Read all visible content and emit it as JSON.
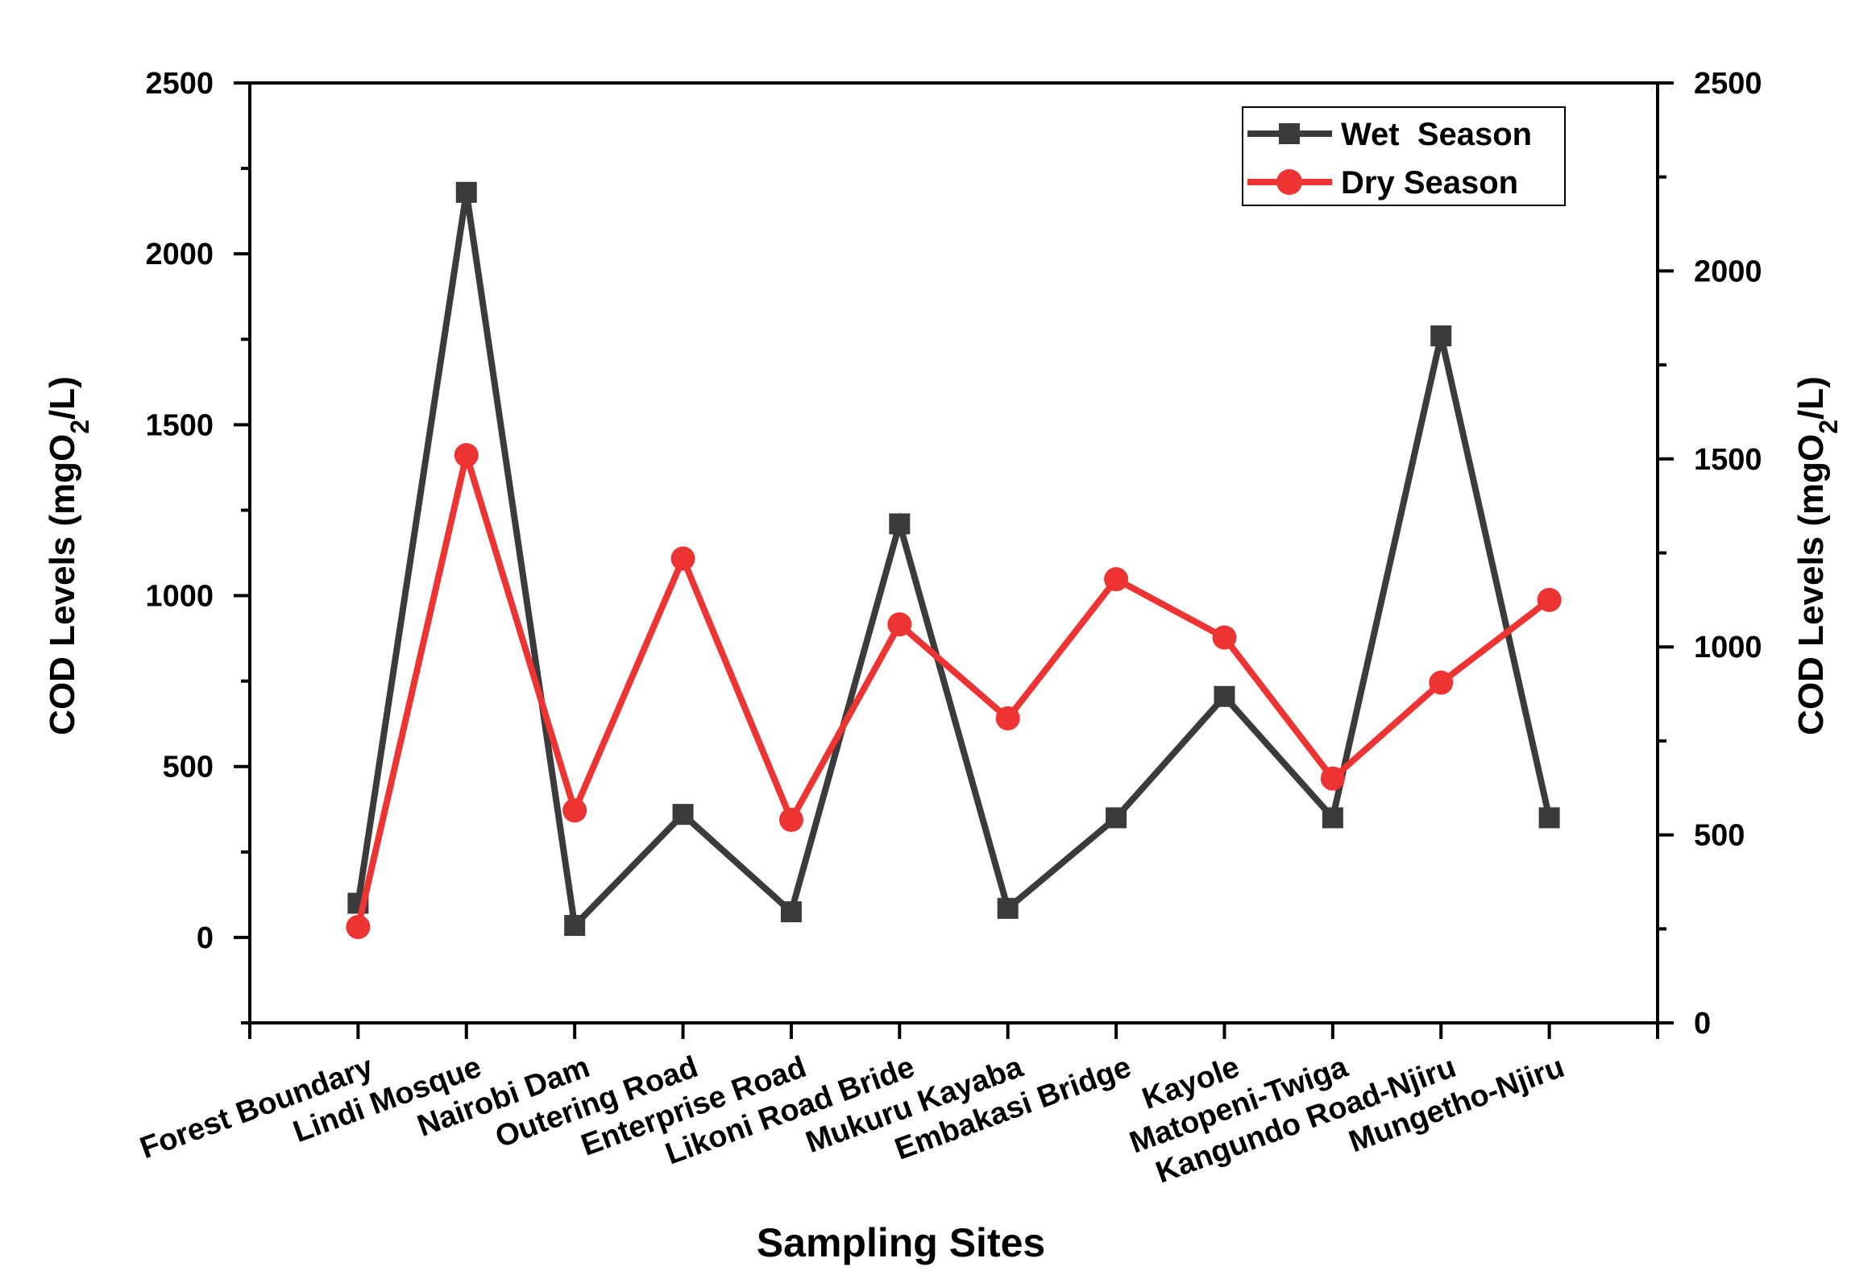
{
  "chart_data": {
    "type": "line",
    "title": "",
    "xlabel": "Sampling Sites",
    "ylabel_left": "COD Levels (mgO2/L)",
    "ylabel_right": "COD Levels (mgO2/L)",
    "ylabel_parts": {
      "pre": "COD Levels (mgO",
      "sub": "2",
      "post": "/L)"
    },
    "categories": [
      "Forest Boundary",
      "Lindi Mosque",
      "Nairobi Dam",
      "Outering Road",
      "Enterprise Road",
      "Likoni Road Bride",
      "Mukuru Kayaba",
      "Embakasi Bridge",
      "Kayole",
      "Matopeni-Twiga",
      "Kangundo Road-Njiru",
      "Mungetho-Njiru"
    ],
    "left_axis": {
      "min": -250,
      "max": 2500,
      "ticks": [
        0,
        500,
        1000,
        1500,
        2000,
        2500
      ]
    },
    "right_axis": {
      "min": 0,
      "max": 2500,
      "ticks": [
        0,
        500,
        1000,
        1500,
        2000,
        2500
      ]
    },
    "series": [
      {
        "name": "Wet  Season",
        "axis": "left",
        "color": "#3b3b3b",
        "marker": "square",
        "values": [
          100,
          2180,
          35,
          360,
          75,
          1210,
          85,
          350,
          705,
          350,
          1760,
          350
        ]
      },
      {
        "name": "Dry Season",
        "axis": "right",
        "color": "#ee3333",
        "marker": "circle",
        "values": [
          255,
          1510,
          565,
          1235,
          540,
          1060,
          810,
          1180,
          1025,
          650,
          905,
          1125
        ]
      }
    ],
    "legend": "top-right",
    "grid": false
  }
}
